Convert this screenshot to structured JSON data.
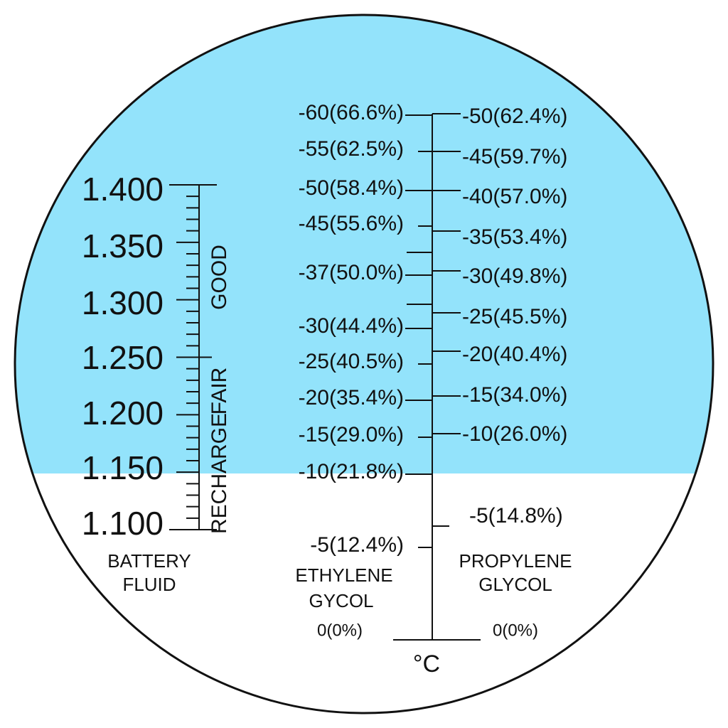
{
  "battery": {
    "labels": [
      "1.400",
      "1.350",
      "1.300",
      "1.250",
      "1.200",
      "1.150",
      "1.100"
    ],
    "zones": {
      "good": "GOOD",
      "fair": "FAIR",
      "recharge": "RECHARGE"
    },
    "caption": [
      "BATTERY",
      "FLUID"
    ]
  },
  "ethylene": {
    "labels": [
      "-60(66.6%)",
      "-55(62.5%)",
      "-50(58.4%)",
      "-45(55.6%)",
      "-37(50.0%)",
      "-30(44.4%)",
      "-25(40.5%)",
      "-20(35.4%)",
      "-15(29.0%)",
      "-10(21.8%)",
      "-5(12.4%)"
    ],
    "caption": [
      "ETHYLENE",
      "GYCOL"
    ],
    "zero": "0(0%)"
  },
  "propylene": {
    "labels": [
      "-50(62.4%)",
      "-45(59.7%)",
      "-40(57.0%)",
      "-35(53.4%)",
      "-30(49.8%)",
      "-25(45.5%)",
      "-20(40.4%)",
      "-15(34.0%)",
      "-10(26.0%)",
      "-5(14.8%)"
    ],
    "caption": [
      "PROPYLENE",
      "GLYCOL"
    ],
    "zero": "0(0%)"
  },
  "unit": "°C"
}
